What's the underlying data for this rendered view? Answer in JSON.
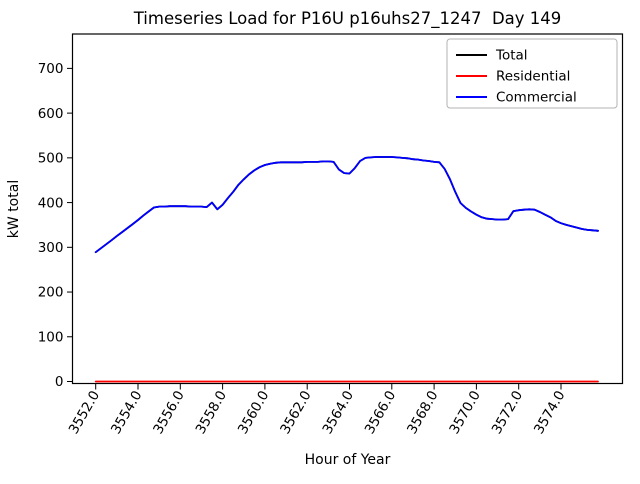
{
  "chart_data": {
    "type": "line",
    "title": "Timeseries Load for P16U p16uhs27_1247  Day 149",
    "xlabel": "Hour of Year",
    "ylabel": "kW total",
    "x_tick_labels": [
      "3552.0",
      "3554.0",
      "3556.0",
      "3558.0",
      "3560.0",
      "3562.0",
      "3564.0",
      "3566.0",
      "3568.0",
      "3570.0",
      "3572.0",
      "3574.0"
    ],
    "y_tick_labels": [
      "0",
      "100",
      "200",
      "300",
      "400",
      "500",
      "600",
      "700"
    ],
    "x_start": 3552.0,
    "x_step": 0.25,
    "grid": false,
    "legend": {
      "position": "upper right",
      "entries": [
        {
          "label": "Total",
          "color": "#000000"
        },
        {
          "label": "Residential",
          "color": "#ff0000"
        },
        {
          "label": "Commercial",
          "color": "#0000ff"
        }
      ]
    },
    "series": [
      {
        "name": "Total",
        "color": "#000000",
        "values_same_as": "Commercial",
        "note": "hidden under Commercial line"
      },
      {
        "name": "Residential",
        "color": "#ff0000",
        "constant_value": 0,
        "n_points": 96
      },
      {
        "name": "Commercial",
        "color": "#0000ff",
        "values": [
          289,
          298,
          307,
          316,
          325,
          334,
          343,
          352,
          361,
          371,
          380,
          389,
          391,
          391,
          392,
          392,
          392,
          392,
          391,
          391,
          391,
          390,
          400,
          385,
          395,
          410,
          424,
          440,
          452,
          463,
          472,
          479,
          484,
          487,
          489,
          490,
          490,
          490,
          490,
          490,
          491,
          491,
          491,
          492,
          492,
          491,
          474,
          466,
          465,
          477,
          493,
          500,
          501,
          502,
          502,
          502,
          502,
          501,
          500,
          499,
          497,
          496,
          494,
          493,
          491,
          490,
          475,
          452,
          424,
          399,
          388,
          380,
          373,
          367,
          364,
          363,
          362,
          362,
          363,
          381,
          383,
          384,
          385,
          384,
          379,
          373,
          367,
          359,
          354,
          350,
          347,
          344,
          341,
          339,
          338,
          337
        ]
      }
    ]
  }
}
